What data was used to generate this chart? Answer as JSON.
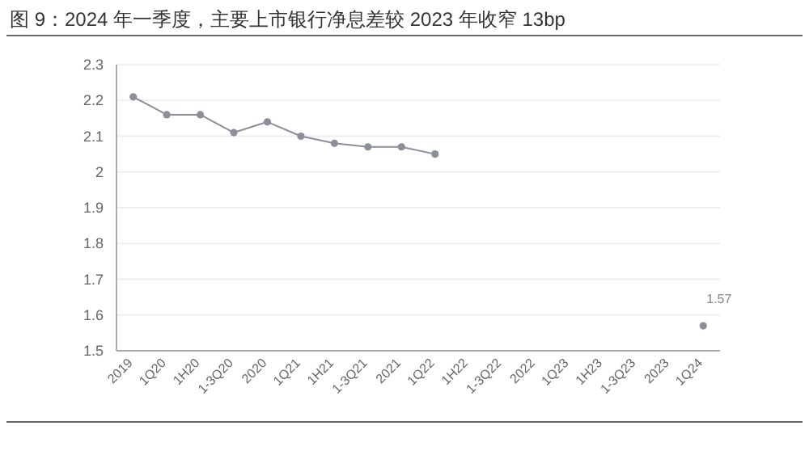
{
  "chart_data": {
    "type": "line",
    "title": "图 9：2024 年一季度，主要上市银行净息差较 2023 年收窄 13bp",
    "categories": [
      "2019",
      "1Q20",
      "1H20",
      "1-3Q20",
      "2020",
      "1Q21",
      "1H21",
      "1-3Q21",
      "2021",
      "1Q22",
      "1H22",
      "1-3Q22",
      "2022",
      "1Q23",
      "1H23",
      "1-3Q23",
      "2023",
      "1Q24"
    ],
    "series": [
      {
        "color": "#8a8f9a",
        "values": [
          2.21,
          2.16,
          2.16,
          2.11,
          2.14,
          2.1,
          2.08,
          2.07,
          2.07,
          2.05,
          null,
          null,
          null,
          null,
          null,
          null,
          null,
          1.57
        ],
        "value_labels": [
          null,
          null,
          null,
          null,
          null,
          null,
          null,
          null,
          null,
          null,
          null,
          null,
          null,
          null,
          null,
          null,
          null,
          "1.57"
        ]
      }
    ],
    "ylim": [
      1.5,
      2.3
    ],
    "yticks": [
      1.5,
      1.6,
      1.7,
      1.8,
      1.9,
      2.0,
      2.1,
      2.2,
      2.3
    ],
    "grid": "y",
    "marker": "circle"
  }
}
